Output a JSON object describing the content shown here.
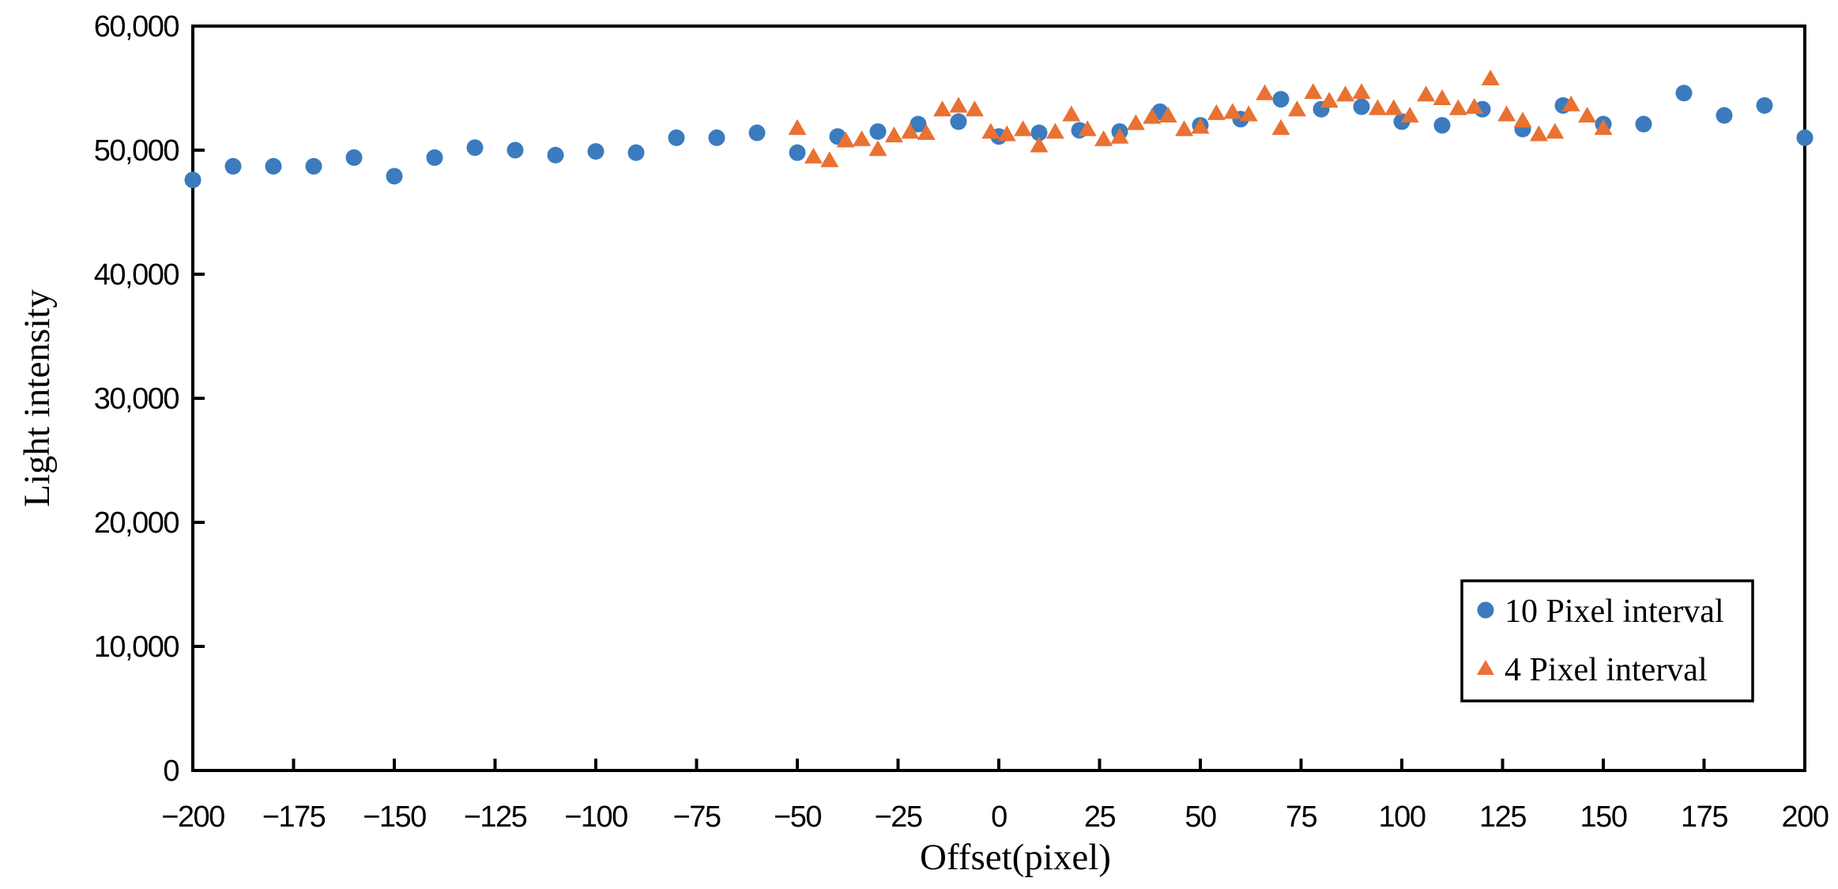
{
  "chart_data": {
    "type": "scatter",
    "title": "",
    "xlabel": "Offset(pixel)",
    "ylabel": "Light intensity",
    "xlim": [
      -200,
      200
    ],
    "ylim": [
      0,
      60000
    ],
    "grid": false,
    "plot_border": true,
    "tick_direction": "in",
    "xticks": {
      "values": [
        -200,
        -175,
        -150,
        -125,
        -100,
        -75,
        -50,
        -25,
        0,
        25,
        50,
        75,
        100,
        125,
        150,
        175,
        200
      ],
      "labels": [
        "−200",
        "−175",
        "−150",
        "−125",
        "−100",
        "−75",
        "−50",
        "−25",
        "0",
        "25",
        "50",
        "75",
        "100",
        "125",
        "150",
        "175",
        "200"
      ]
    },
    "yticks": {
      "values": [
        0,
        10000,
        20000,
        30000,
        40000,
        50000,
        60000
      ],
      "labels": [
        "0",
        "10,000",
        "20,000",
        "30,000",
        "40,000",
        "50,000",
        "60,000"
      ]
    },
    "legend": {
      "position": "bottom-right",
      "items": [
        {
          "label": "10 Pixel interval",
          "marker": "circle",
          "color": "#3B7BBE"
        },
        {
          "label": "4 Pixel interval",
          "marker": "triangle",
          "color": "#E97132"
        }
      ]
    },
    "series": [
      {
        "name": "10 Pixel interval",
        "marker": "circle",
        "color": "#3B7BBE",
        "x": [
          -200,
          -190,
          -180,
          -170,
          -160,
          -150,
          -140,
          -130,
          -120,
          -110,
          -100,
          -90,
          -80,
          -70,
          -60,
          -50,
          -40,
          -30,
          -20,
          -10,
          0,
          10,
          20,
          30,
          40,
          50,
          60,
          70,
          80,
          90,
          100,
          110,
          120,
          130,
          140,
          150,
          160,
          170,
          180,
          190,
          200
        ],
        "y": [
          47600,
          48700,
          48700,
          48700,
          49400,
          47900,
          49400,
          50200,
          50000,
          49600,
          49900,
          49800,
          51000,
          51000,
          51400,
          49800,
          51100,
          51500,
          52100,
          52300,
          51100,
          51400,
          51600,
          51500,
          53100,
          52000,
          52500,
          54100,
          53300,
          53500,
          52300,
          52000,
          53300,
          51700,
          53600,
          52100,
          52100,
          54600,
          52800,
          53600,
          51000
        ]
      },
      {
        "name": "4 Pixel interval",
        "marker": "triangle",
        "color": "#E97132",
        "x": [
          -50,
          -46,
          -42,
          -38,
          -34,
          -30,
          -26,
          -22,
          -18,
          -14,
          -10,
          -6,
          -2,
          2,
          6,
          10,
          14,
          18,
          22,
          26,
          30,
          34,
          38,
          42,
          46,
          50,
          54,
          58,
          62,
          66,
          70,
          74,
          78,
          82,
          86,
          90,
          94,
          98,
          102,
          106,
          110,
          114,
          118,
          122,
          126,
          130,
          134,
          138,
          142,
          146,
          150
        ],
        "y": [
          51800,
          49500,
          49200,
          50800,
          50900,
          50100,
          51200,
          51500,
          51400,
          53300,
          53600,
          53300,
          51500,
          51300,
          51700,
          50400,
          51500,
          52900,
          51700,
          50900,
          51100,
          52200,
          52700,
          52800,
          51700,
          51900,
          53000,
          53100,
          52900,
          54600,
          51800,
          53300,
          54700,
          54000,
          54500,
          54700,
          53400,
          53400,
          52800,
          54500,
          54200,
          53400,
          53500,
          55800,
          52900,
          52400,
          51300,
          51500,
          53700,
          52800,
          51800
        ]
      }
    ],
    "colors": {
      "axis": "#000000",
      "background": "#ffffff",
      "series1": "#3B7BBE",
      "series2": "#E97132"
    }
  }
}
